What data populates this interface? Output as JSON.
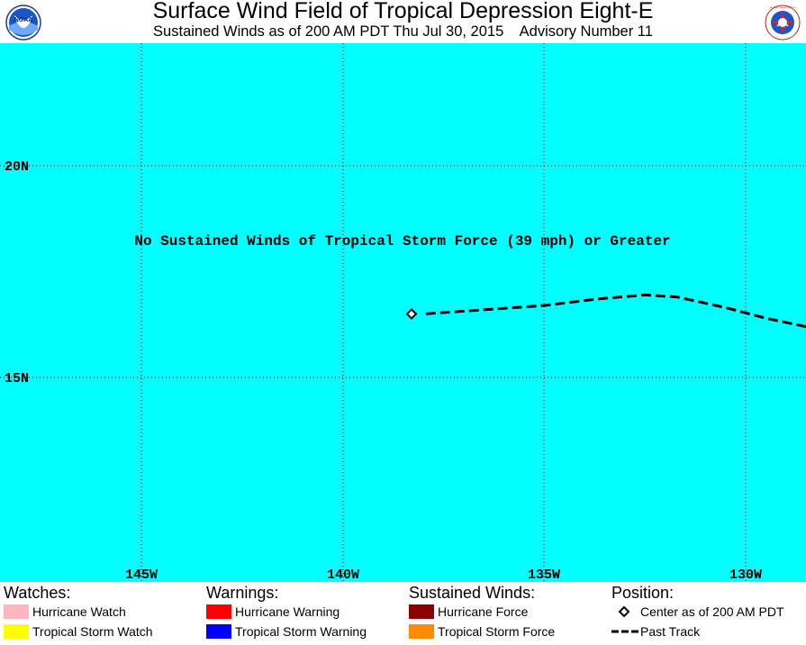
{
  "header": {
    "title": "Surface Wind Field of Tropical Depression Eight-E",
    "subtitle": "Sustained Winds as of 200 AM PDT Thu Jul 30, 2015    Advisory Number 11",
    "left_logo_text": "NOAA",
    "right_logo_text": "NATIONAL WEATHER SERVICE"
  },
  "map": {
    "background_color": "#00ffff",
    "lat_labels": [
      "20N",
      "15N"
    ],
    "lon_labels": [
      "145W",
      "140W",
      "135W",
      "130W"
    ],
    "annotation": "No Sustained Winds of Tropical Storm Force (39 mph) or Greater",
    "storm_center": {
      "lon": -138.3,
      "lat": 16.5
    },
    "past_track": [
      {
        "lon": -128.5,
        "lat": 16.2
      },
      {
        "lon": -129.5,
        "lat": 16.4
      },
      {
        "lon": -130.5,
        "lat": 16.65
      },
      {
        "lon": -131.7,
        "lat": 16.9
      },
      {
        "lon": -132.5,
        "lat": 16.95
      },
      {
        "lon": -133.7,
        "lat": 16.85
      },
      {
        "lon": -135.0,
        "lat": 16.7
      },
      {
        "lon": -136.5,
        "lat": 16.6
      },
      {
        "lon": -138.0,
        "lat": 16.5
      }
    ]
  },
  "legend": {
    "watches": {
      "heading": "Watches:",
      "items": [
        {
          "label": "Hurricane Watch",
          "color": "#ffb6c1"
        },
        {
          "label": "Tropical Storm Watch",
          "color": "#ffff00"
        }
      ]
    },
    "warnings": {
      "heading": "Warnings:",
      "items": [
        {
          "label": "Hurricane Warning",
          "color": "#ff0000"
        },
        {
          "label": "Tropical Storm Warning",
          "color": "#0000ff"
        }
      ]
    },
    "sustained_winds": {
      "heading": "Sustained Winds:",
      "items": [
        {
          "label": "Hurricane Force",
          "color": "#8b0000"
        },
        {
          "label": "Tropical Storm Force",
          "color": "#ff8c00"
        }
      ]
    },
    "position": {
      "heading": "Position:",
      "center_label": "Center as of 200 AM PDT",
      "track_label": "Past Track"
    }
  }
}
